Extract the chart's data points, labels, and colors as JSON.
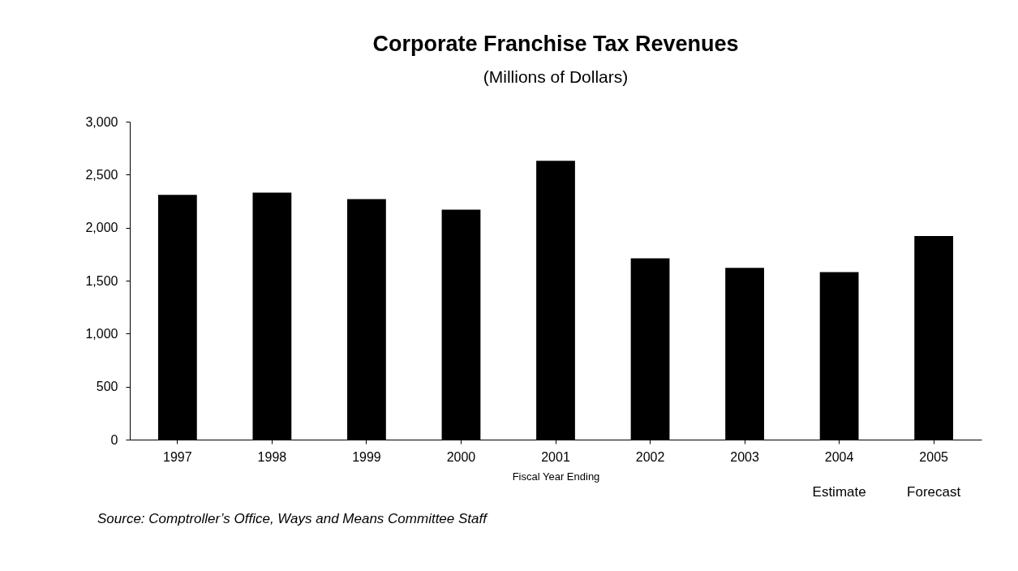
{
  "chart_data": {
    "type": "bar",
    "title": "Corporate Franchise Tax Revenues",
    "subtitle": "(Millions of Dollars)",
    "xlabel": "Fiscal Year Ending",
    "categories": [
      "1997",
      "1998",
      "1999",
      "2000",
      "2001",
      "2002",
      "2003",
      "2004",
      "2005"
    ],
    "values": [
      2310,
      2330,
      2270,
      2170,
      2630,
      1710,
      1620,
      1580,
      1920
    ],
    "color": "#000000",
    "ylim": [
      0,
      3000
    ],
    "yticks": [
      0,
      {
        "value": 500,
        "label": "500"
      },
      {
        "value": 1000,
        "label": "1,000"
      },
      {
        "value": 1500,
        "label": "1,500"
      },
      {
        "value": 2000,
        "label": "2,000"
      },
      {
        "value": 2500,
        "label": "2,500"
      },
      {
        "value": 3000,
        "label": "3,000"
      }
    ],
    "grid": false,
    "annotations": [
      "Estimate",
      "Forecast",
      "Source: Comptroller’s Office, Ways and Means Committee Staff"
    ]
  }
}
